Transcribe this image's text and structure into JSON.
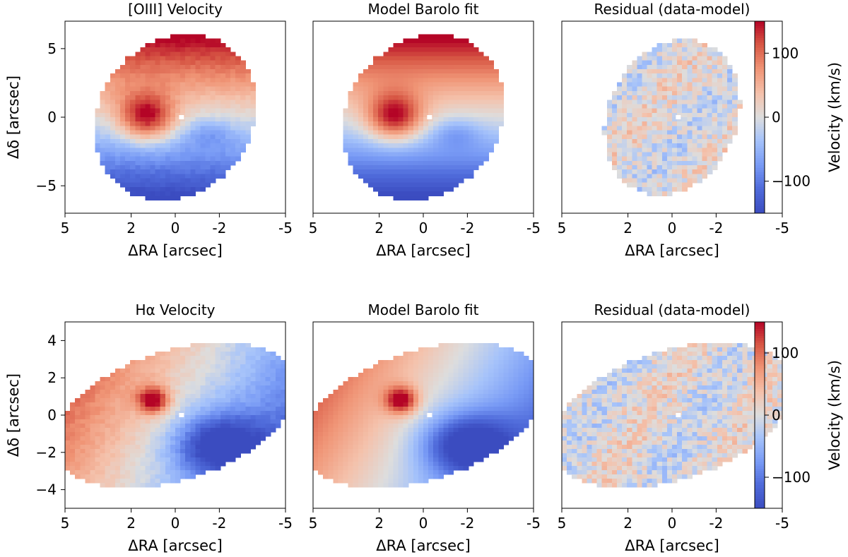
{
  "figure": {
    "colormap": "coolwarm",
    "colors": {
      "red": "#b40426",
      "white": "#dddddd",
      "blue": "#3b4cc0",
      "axis": "#000000"
    }
  },
  "chart_data": [
    {
      "type": "heatmap",
      "row": "top",
      "panel": "data",
      "title": "[OIII] Velocity",
      "xlabel": "ΔRA [arcsec]",
      "ylabel": "Δδ [arcsec]",
      "xlim": [
        5,
        -5
      ],
      "ylim": [
        -7,
        7
      ],
      "xticks": [
        5,
        2,
        0,
        -2,
        -5
      ],
      "xtick_labels": [
        "5",
        "2",
        "0",
        "-2",
        "-5"
      ],
      "yticks": [
        5,
        0,
        -5
      ],
      "ytick_labels": [
        "5",
        "0",
        "−5"
      ],
      "value_range": [
        -150,
        150
      ],
      "units": "km/s",
      "feature": {
        "center": [
          0,
          0
        ],
        "semi_axes": [
          3.6,
          6.1
        ],
        "rotation_deg": 8,
        "peak_velocity": 150,
        "min_velocity": -100
      }
    },
    {
      "type": "heatmap",
      "row": "top",
      "panel": "model",
      "title": "Model Barolo fit",
      "xlabel": "ΔRA [arcsec]",
      "ylabel": "",
      "xlim": [
        5,
        -5
      ],
      "ylim": [
        -7,
        7
      ],
      "xticks": [
        5,
        2,
        0,
        -2,
        -5
      ],
      "xtick_labels": [
        "5",
        "2",
        "0",
        "-2",
        "-5"
      ],
      "yticks": [],
      "ytick_labels": [],
      "value_range": [
        -150,
        150
      ],
      "units": "km/s",
      "feature": {
        "center": [
          0,
          0
        ],
        "semi_axes": [
          3.6,
          6.1
        ],
        "rotation_deg": 8,
        "peak_velocity": 150,
        "min_velocity": -100
      }
    },
    {
      "type": "heatmap",
      "row": "top",
      "panel": "residual",
      "title": "Residual (data-model)",
      "xlabel": "ΔRA [arcsec]",
      "ylabel": "",
      "xlim": [
        5,
        -5
      ],
      "ylim": [
        -7,
        7
      ],
      "xticks": [
        5,
        2,
        0,
        -2,
        -5
      ],
      "xtick_labels": [
        "5",
        "2",
        "0",
        "-2",
        "-5"
      ],
      "yticks": [],
      "ytick_labels": [],
      "value_range": [
        -150,
        150
      ],
      "units": "km/s",
      "feature": {
        "center": [
          0,
          0
        ],
        "semi_axes": [
          3.0,
          5.7
        ],
        "rotation_deg": 8,
        "residual_amplitude": 40
      }
    },
    {
      "type": "heatmap",
      "row": "bottom",
      "panel": "data",
      "title": "Hα Velocity",
      "xlabel": "ΔRA [arcsec]",
      "ylabel": "Δδ [arcsec]",
      "xlim": [
        5,
        -5
      ],
      "ylim": [
        -5,
        5
      ],
      "xticks": [
        5,
        2,
        0,
        -2,
        -5
      ],
      "xtick_labels": [
        "5",
        "2",
        "0",
        "-2",
        "-5"
      ],
      "yticks": [
        4,
        2,
        0,
        -2,
        -4
      ],
      "ytick_labels": [
        "4",
        "2",
        "0",
        "−2",
        "−4"
      ],
      "value_range": [
        -150,
        150
      ],
      "units": "km/s",
      "feature": {
        "center": [
          0,
          0
        ],
        "semi_axes": [
          5.8,
          3.4
        ],
        "rotation_deg": -24,
        "peak_velocity": 150,
        "min_velocity": -130
      }
    },
    {
      "type": "heatmap",
      "row": "bottom",
      "panel": "model",
      "title": "Model Barolo fit",
      "xlabel": "ΔRA [arcsec]",
      "ylabel": "",
      "xlim": [
        5,
        -5
      ],
      "ylim": [
        -5,
        5
      ],
      "xticks": [
        5,
        2,
        0,
        -2,
        -5
      ],
      "xtick_labels": [
        "5",
        "2",
        "0",
        "-2",
        "-5"
      ],
      "yticks": [],
      "ytick_labels": [],
      "value_range": [
        -150,
        150
      ],
      "units": "km/s",
      "feature": {
        "center": [
          0,
          0
        ],
        "semi_axes": [
          5.8,
          3.4
        ],
        "rotation_deg": -24,
        "peak_velocity": 150,
        "min_velocity": -130
      }
    },
    {
      "type": "heatmap",
      "row": "bottom",
      "panel": "residual",
      "title": "Residual (data-model)",
      "xlabel": "ΔRA [arcsec]",
      "ylabel": "",
      "xlim": [
        5,
        -5
      ],
      "ylim": [
        -5,
        5
      ],
      "xticks": [
        5,
        2,
        0,
        -2,
        -5
      ],
      "xtick_labels": [
        "5",
        "2",
        "0",
        "-2",
        "-5"
      ],
      "yticks": [],
      "ytick_labels": [],
      "value_range": [
        -150,
        150
      ],
      "units": "km/s",
      "feature": {
        "center": [
          0,
          0
        ],
        "semi_axes": [
          5.8,
          3.4
        ],
        "rotation_deg": -24,
        "residual_amplitude": 50
      }
    }
  ],
  "colorbars": [
    {
      "row": "top",
      "label": "Velocity (km/s)",
      "range": [
        -150,
        150
      ],
      "ticks": [
        100,
        0,
        -100
      ],
      "tick_labels": [
        "100",
        "0",
        "−100"
      ]
    },
    {
      "row": "bottom",
      "label": "Velocity (km/s)",
      "range": [
        -150,
        150
      ],
      "ticks": [
        100,
        0,
        -100
      ],
      "tick_labels": [
        "100",
        "0",
        "−100"
      ]
    }
  ]
}
